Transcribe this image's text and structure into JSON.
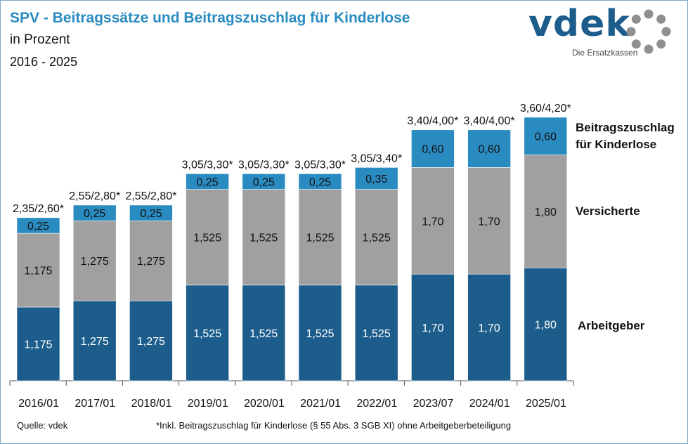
{
  "header": {
    "title": "SPV - Beitragssätze und Beitragszuschlag für Kinderlose",
    "subtitle": "in Prozent",
    "years": "2016 - 2025"
  },
  "logo": {
    "wordmark": "vdek",
    "tagline": "Die Ersatzkassen",
    "icon": "ring-of-dots-icon"
  },
  "colors": {
    "arbeitgeber": "#1d5d8c",
    "versicherte": "#a0a0a0",
    "zuschlag": "#2a8bc0",
    "title": "#2a8bc0"
  },
  "chart_data": {
    "type": "bar",
    "stacked": true,
    "categories": [
      "2016/01",
      "2017/01",
      "2018/01",
      "2019/01",
      "2020/01",
      "2021/01",
      "2022/01",
      "2023/07",
      "2024/01",
      "2025/01"
    ],
    "series": [
      {
        "name": "Arbeitgeber",
        "values": [
          1.175,
          1.275,
          1.275,
          1.525,
          1.525,
          1.525,
          1.525,
          1.7,
          1.7,
          1.8
        ],
        "labels": [
          "1,175",
          "1,275",
          "1,275",
          "1,525",
          "1,525",
          "1,525",
          "1,525",
          "1,70",
          "1,70",
          "1,80"
        ]
      },
      {
        "name": "Versicherte",
        "values": [
          1.175,
          1.275,
          1.275,
          1.525,
          1.525,
          1.525,
          1.525,
          1.7,
          1.7,
          1.8
        ],
        "labels": [
          "1,175",
          "1,275",
          "1,275",
          "1,525",
          "1,525",
          "1,525",
          "1,525",
          "1,70",
          "1,70",
          "1,80"
        ]
      },
      {
        "name": "Beitragszuschlag für Kinderlose",
        "values": [
          0.25,
          0.25,
          0.25,
          0.25,
          0.25,
          0.25,
          0.35,
          0.6,
          0.6,
          0.6
        ],
        "labels": [
          "0,25",
          "0,25",
          "0,25",
          "0,25",
          "0,25",
          "0,25",
          "0,35",
          "0,60",
          "0,60",
          "0,60"
        ]
      }
    ],
    "totals": [
      "2,35/2,60*",
      "2,55/2,80*",
      "2,55/2,80*",
      "3,05/3,30*",
      "3,05/3,30*",
      "3,05/3,30*",
      "3,05/3,40*",
      "3,40/4,00*",
      "3,40/4,00*",
      "3,60/4,20*"
    ],
    "legend": {
      "zuschlag_line1": "Beitragszuschlag",
      "zuschlag_line2": "für Kinderlose",
      "versicherte": "Versicherte",
      "arbeitgeber": "Arbeitgeber"
    },
    "legend_position": "right",
    "grid": false,
    "ylim": [
      0,
      4.2
    ]
  },
  "footer": {
    "source": "Quelle: vdek",
    "note": "*Inkl. Beitragszuschlag für Kinderlose (§ 55 Abs. 3 SGB XI) ohne Arbeitgeberbeteiligung"
  }
}
